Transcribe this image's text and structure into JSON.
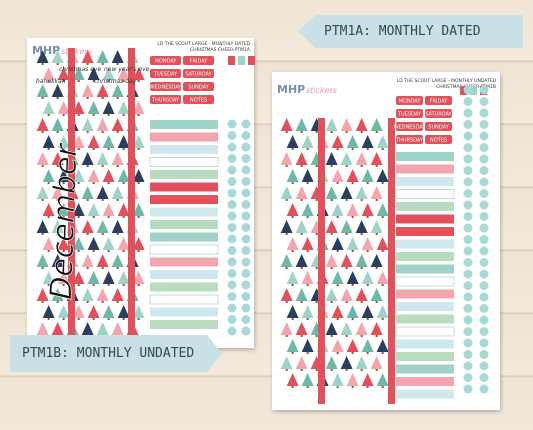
{
  "tags": {
    "dated": "PTM1A: MONTHLY DATED",
    "undated": "PTM1B: MONTHLY UNDATED"
  },
  "sheets": [
    {
      "logo": "MHP",
      "logo_sub": "stickers",
      "title": "LD THE SCOUT LARGE - MONTHLY DATED",
      "subtitle": "CHRISTMAS CHEER-PTM1A",
      "holidays": [
        "christmas eve",
        "new year's eve",
        "hanukkah",
        "christmas day"
      ],
      "month": "December",
      "days": [
        "MONDAY",
        "FRIDAY",
        "TUESDAY",
        "SATURDAY",
        "WEDNESDAY",
        "SUNDAY",
        "THURSDAY",
        "NOTES"
      ]
    },
    {
      "logo": "MHP",
      "logo_sub": "stickers",
      "title": "LD THE SCOUT LARGE - MONTHLY UNDATED",
      "subtitle": "CHRISTMAS CHEER-PTM1B",
      "days": [
        "MONDAY",
        "FRIDAY",
        "TUESDAY",
        "SATURDAY",
        "WEDNESDAY",
        "SUNDAY",
        "THURSDAY",
        "NOTES"
      ]
    }
  ]
}
